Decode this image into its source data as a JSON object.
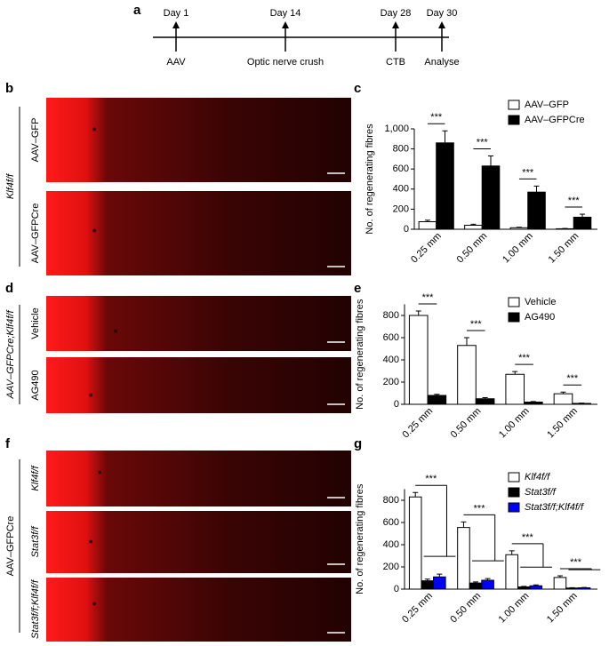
{
  "panels": [
    "a",
    "b",
    "c",
    "d",
    "e",
    "f",
    "g"
  ],
  "timeline": {
    "events": [
      {
        "top": "Day 1",
        "bottom": "AAV"
      },
      {
        "top": "Day 14",
        "bottom": "Optic nerve crush"
      },
      {
        "top": "Day 28",
        "bottom": "CTB"
      },
      {
        "top": "Day 30",
        "bottom": "Analyse"
      }
    ]
  },
  "images": {
    "asterisk": "*",
    "b": {
      "group": "Klf4f/f",
      "rows": [
        "AAV–GFP",
        "AAV–GFPCre"
      ]
    },
    "d": {
      "group": "AAV–GFPCre;Klf4f/f",
      "rows": [
        "Vehicle",
        "AG490"
      ]
    },
    "f": {
      "group": "AAV–GFPCre",
      "rows": [
        "Klf4f/f",
        "Stat3f/f",
        "Stat3f/f;Klf4f/f"
      ]
    }
  },
  "chart_data": [
    {
      "type": "bar",
      "ylabel": "No. of regenerating fibres",
      "categories": [
        "0.25 mm",
        "0.50 mm",
        "1.00 mm",
        "1.50 mm"
      ],
      "series": [
        {
          "name": "AAV–GFP",
          "color": "#ffffff",
          "values": [
            75,
            40,
            15,
            5
          ],
          "errors": [
            15,
            10,
            5,
            3
          ]
        },
        {
          "name": "AAV–GFPCre",
          "color": "#000000",
          "values": [
            860,
            630,
            370,
            120
          ],
          "errors": [
            120,
            100,
            60,
            30
          ]
        }
      ],
      "ylim": [
        0,
        1000
      ],
      "yticks": [
        0,
        200,
        400,
        600,
        800,
        {
          "value": 1000,
          "label": "1,000"
        }
      ],
      "annotations": [
        "***",
        "***",
        "***",
        "***"
      ],
      "legend": "top-right"
    },
    {
      "type": "bar",
      "ylabel": "No. of regenerating fibres",
      "categories": [
        "0.25 mm",
        "0.50 mm",
        "1.00 mm",
        "1.50 mm"
      ],
      "series": [
        {
          "name": "Vehicle",
          "color": "#ffffff",
          "values": [
            800,
            530,
            270,
            95
          ],
          "errors": [
            40,
            70,
            25,
            15
          ]
        },
        {
          "name": "AG490",
          "color": "#000000",
          "values": [
            80,
            50,
            20,
            8
          ],
          "errors": [
            10,
            10,
            5,
            3
          ]
        }
      ],
      "ylim": [
        0,
        900
      ],
      "yticks": [
        0,
        200,
        400,
        600,
        800
      ],
      "annotations": [
        "***",
        "***",
        "***",
        "***"
      ],
      "legend": "top-right"
    },
    {
      "type": "bar",
      "ylabel": "No. of regenerating fibres",
      "categories": [
        "0.25 mm",
        "0.50 mm",
        "1.00 mm",
        "1.50 mm"
      ],
      "series": [
        {
          "name": "Klf4f/f",
          "color": "#ffffff",
          "values": [
            830,
            555,
            310,
            105
          ],
          "errors": [
            40,
            50,
            35,
            15
          ]
        },
        {
          "name": "Stat3f/f",
          "color": "#000000",
          "values": [
            75,
            55,
            20,
            10
          ],
          "errors": [
            15,
            10,
            5,
            3
          ]
        },
        {
          "name": "Stat3f/f;Klf4f/f",
          "color": "#0000ff",
          "values": [
            110,
            80,
            30,
            12
          ],
          "errors": [
            25,
            15,
            8,
            3
          ]
        }
      ],
      "ylim": [
        0,
        900
      ],
      "yticks": [
        0,
        200,
        400,
        600,
        800
      ],
      "annotations": [
        "***",
        "***",
        "***",
        "***"
      ],
      "legend": "top-right"
    }
  ]
}
